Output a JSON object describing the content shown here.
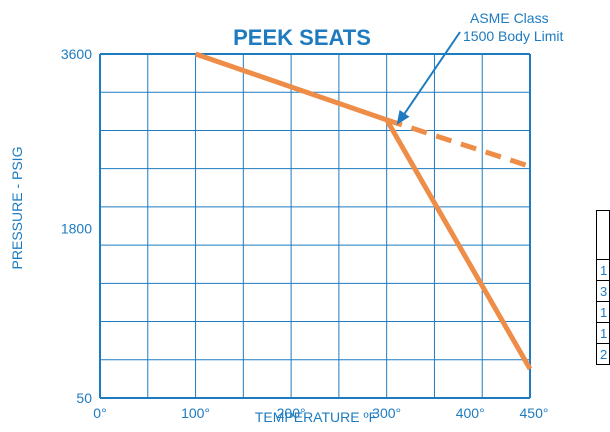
{
  "chart_data": {
    "type": "line",
    "title": "PEEK SEATS",
    "xlabel": "TEMPERATURE ºF",
    "ylabel": "PRESSURE - PSIG",
    "x_ticks": [
      "0°",
      "100°",
      "200°",
      "300°",
      "400°",
      "450°"
    ],
    "y_ticks": [
      "3600",
      "1800",
      "50"
    ],
    "xlim": [
      0,
      450
    ],
    "ylim": [
      50,
      3600
    ],
    "grid": true,
    "series": [
      {
        "style": "solid",
        "x": [
          100,
          300,
          450
        ],
        "y": [
          3600,
          2920,
          350
        ]
      },
      {
        "style": "dashed",
        "x": [
          300,
          450
        ],
        "y": [
          2920,
          2440
        ]
      }
    ],
    "annotation": {
      "lines": [
        "ASME Class",
        "1500 Body Limit"
      ],
      "points_to": {
        "x": 300,
        "y": 2920
      }
    },
    "colors": {
      "accent": "#1e7bc0",
      "line": "#ee8d47",
      "grid": "#1e7bc0"
    }
  },
  "side_table": {
    "rows": [
      "",
      "1",
      "3",
      "1",
      "1",
      "2"
    ]
  }
}
